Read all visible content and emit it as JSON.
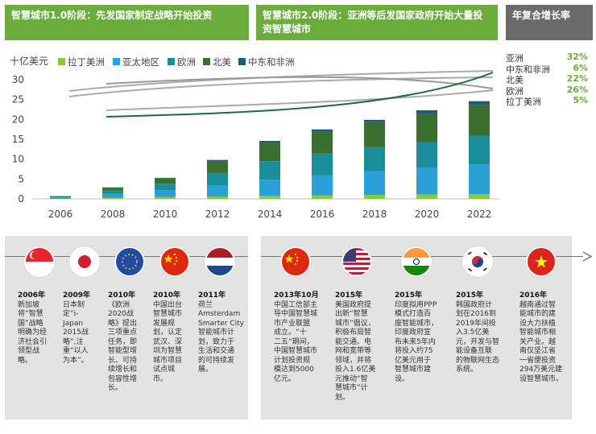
{
  "banners": {
    "phase1": "智慧城市1.0阶段：先发国家制定战略开始投资",
    "phase2": "智慧城市2.0阶段：亚洲等后发国家政府开始大量投资智慧城市",
    "cagr_title": "年复合增长率"
  },
  "chart_data": {
    "type": "bar",
    "stacked": true,
    "ylabel": "十亿美元",
    "ylim": [
      0,
      30
    ],
    "yticks": [
      0,
      5,
      10,
      15,
      20,
      25,
      30
    ],
    "categories": [
      "2006",
      "2007",
      "2008",
      "2009",
      "2010",
      "2011",
      "2012",
      "2013",
      "2014",
      "2015",
      "2016",
      "2017",
      "2018",
      "2019",
      "2020",
      "2021",
      "2022"
    ],
    "xtick_labels": [
      "2006",
      "2008",
      "2010",
      "2012",
      "2014",
      "2016",
      "2018",
      "2020",
      "2022"
    ],
    "legend_position": "top",
    "series": [
      {
        "name": "拉丁美洲",
        "color": "#8dc63f",
        "values": [
          0.1,
          null,
          0.3,
          null,
          0.5,
          null,
          0.6,
          null,
          0.8,
          null,
          0.9,
          null,
          1.0,
          null,
          1.1,
          null,
          1.2
        ]
      },
      {
        "name": "亚太地区",
        "color": "#2b9fd8",
        "values": [
          0.3,
          null,
          1.0,
          null,
          1.7,
          null,
          2.7,
          null,
          4.0,
          null,
          5.0,
          null,
          6.0,
          null,
          6.8,
          null,
          7.5
        ]
      },
      {
        "name": "欧洲",
        "color": "#1b8e9c",
        "values": [
          0.2,
          null,
          0.8,
          null,
          1.6,
          null,
          3.2,
          null,
          4.7,
          null,
          5.5,
          null,
          6.0,
          null,
          6.4,
          null,
          7.2
        ]
      },
      {
        "name": "北美",
        "color": "#3c6e2f",
        "values": [
          0.1,
          null,
          0.6,
          null,
          1.3,
          null,
          2.9,
          null,
          4.6,
          null,
          5.5,
          null,
          6.3,
          null,
          7.2,
          null,
          7.8
        ]
      },
      {
        "name": "中东和非洲",
        "color": "#1d5a80",
        "values": [
          0.0,
          null,
          0.2,
          null,
          0.2,
          null,
          0.4,
          null,
          0.5,
          null,
          0.6,
          null,
          0.6,
          null,
          0.8,
          null,
          0.9
        ]
      }
    ],
    "cagr": [
      {
        "name": "亚洲",
        "value": "32%"
      },
      {
        "name": "中东和非洲",
        "value": "6%"
      },
      {
        "name": "北美",
        "value": "22%"
      },
      {
        "name": "欧洲",
        "value": "26%"
      },
      {
        "name": "拉丁美洲",
        "value": "5%"
      }
    ]
  },
  "timeline": {
    "phase1": [
      {
        "year": "2006年",
        "text": "新加坡\n将“智慧\n国”战略\n明确为经\n济社会引\n领型战\n略。",
        "flag": "singapore-flag-icon"
      },
      {
        "year": "2009年",
        "text": "日本制\n定“i-\nJapan\n2015战\n略”,注\n重“以人\n为本”。",
        "flag": "japan-flag-icon"
      },
      {
        "year": "2010年",
        "text": "《欧洲\n2020战\n略》提出\n三项重点\n任务，即\n智能型增\n长、可持\n续增长和\n包容性增\n长。",
        "flag": "eu-flag-icon"
      },
      {
        "year": "2010年",
        "text": "中国出台\n智慧城市\n发展规\n划，认定\n武汉、深\n圳为智慧\n城市项目\n试点城\n市。",
        "flag": "china-flag-icon"
      },
      {
        "year": "2011年",
        "text": "荷兰\nAmsterdam\nSmarter City\n智能城市计\n划，致力于\n生活和交通\n的可持续发\n展。",
        "flag": "netherlands-flag-icon"
      }
    ],
    "phase2": [
      {
        "year": "2013年10月",
        "text": "中国工信部主\n导中国智慧城\n市产业联盟\n成立。“十\n二五”期间，\n中国智慧城市\n计划投资规\n模达到5000\n亿元。",
        "flag": "china-flag-icon"
      },
      {
        "year": "2015年",
        "text": "美国政府提\n出新“智慧\n城市”倡议，\n积极布局智\n能交通、电\n网和宽带等\n领域，并将\n投入1.6亿美\n元推动“智\n慧城市”计\n划。",
        "flag": "usa-flag-icon"
      },
      {
        "year": "2015年",
        "text": "印度拟用PPP\n模式打造百\n座智能城市，\n印度政府宣\n布未来5年内\n将投入约75\n亿美元用于\n智慧城市建\n设。",
        "flag": "india-flag-icon"
      },
      {
        "year": "2015年",
        "text": "韩国政府计\n划在2016到\n2019年间投\n入3.5亿美\n元，开发与智\n能设备互联\n的物联网生态\n系统。",
        "flag": "korea-flag-icon"
      },
      {
        "year": "2016年",
        "text": "越南通过智\n能城市的建\n设大力扶植\n智能城市相\n关产业。越\n南仅坚江省\n一省便投资\n294万美元建\n设智慧城市。",
        "flag": "vietnam-flag-icon"
      }
    ]
  }
}
